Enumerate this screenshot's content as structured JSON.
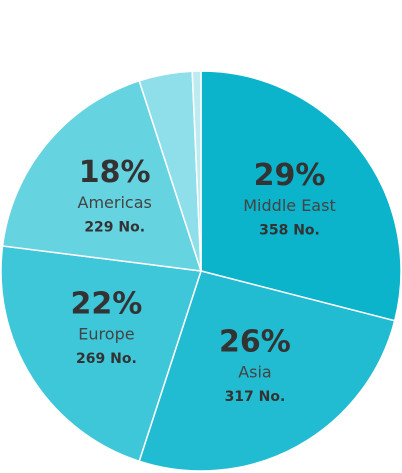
{
  "chart_data": {
    "type": "pie",
    "categories": [
      "Middle East",
      "Asia",
      "Europe",
      "Americas",
      null,
      null
    ],
    "values": [
      29,
      26,
      22,
      18,
      4.3,
      0.7
    ],
    "value_labels": [
      "29%",
      "26%",
      "22%",
      "18%",
      null,
      null
    ],
    "counts": [
      358,
      317,
      269,
      229,
      null,
      null
    ],
    "count_labels": [
      "358 No.",
      "317 No.",
      "269 No.",
      "229 No.",
      null,
      null
    ],
    "colors": [
      "#0bb3cb",
      "#22bcd2",
      "#3ec6d9",
      "#66d3e1",
      "#8fdfea",
      "#bdebf2"
    ]
  }
}
